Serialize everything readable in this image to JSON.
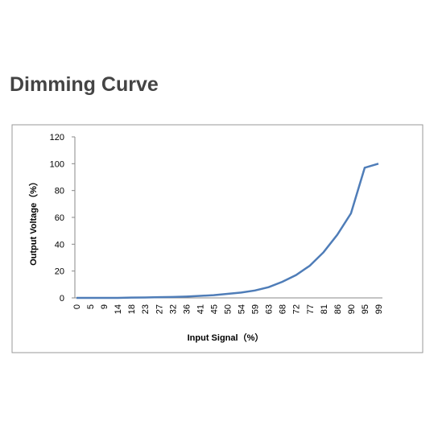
{
  "chart_data": {
    "type": "line",
    "title": "Dimming Curve",
    "x_label": "Input Signal（%）",
    "y_label": "Output Voltage（%）",
    "categories": [
      0,
      5,
      9,
      14,
      18,
      23,
      27,
      32,
      36,
      41,
      45,
      50,
      54,
      59,
      63,
      68,
      72,
      77,
      81,
      86,
      90,
      95,
      99
    ],
    "series": [
      {
        "name": "Output Voltage",
        "color": "#4f7db8",
        "values": [
          0,
          0,
          0,
          0,
          0.2,
          0.3,
          0.5,
          0.7,
          1,
          1.5,
          2,
          3,
          4,
          5.5,
          8,
          12,
          17,
          24,
          34,
          47,
          63,
          97,
          100
        ]
      }
    ],
    "ylim": [
      0,
      120
    ],
    "yticks": [
      0,
      20,
      40,
      60,
      80,
      100,
      120
    ],
    "grid": false
  }
}
